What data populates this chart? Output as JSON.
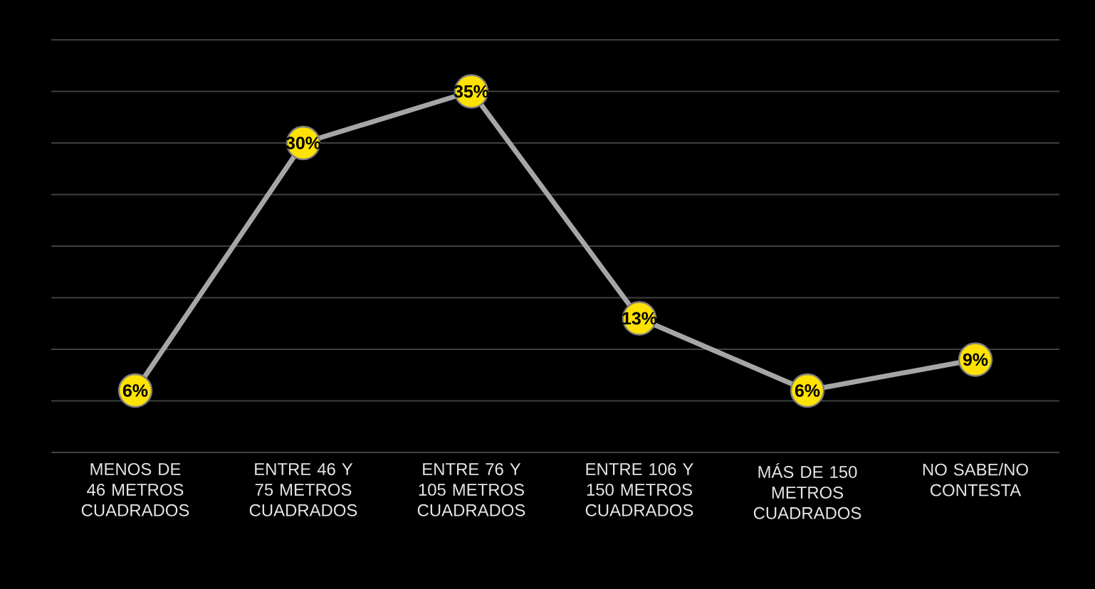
{
  "chart_data": {
    "type": "line",
    "categories": [
      "MENOS DE 46 METROS CUADRADOS",
      "ENTRE 46 Y 75 METROS CUADRADOS",
      "ENTRE 76 Y 105 METROS CUADRADOS",
      "ENTRE 106 Y 150 METROS CUADRADOS",
      "MÁS DE 150 METROS CUADRADOS",
      "NO SABE/NO CONTESTA"
    ],
    "series": [
      {
        "color": "#a6a6a6",
        "values": [
          6,
          30,
          35,
          13,
          6,
          9
        ],
        "value_labels": [
          "6%",
          "30%",
          "35%",
          "13%",
          "6%",
          "9%"
        ]
      }
    ],
    "ylim": [
      0,
      40
    ],
    "yticks": [
      {
        "value": 0,
        "label": null
      },
      {
        "value": 5,
        "label": null
      },
      {
        "value": 10,
        "label": null
      },
      {
        "value": 15,
        "label": null
      },
      {
        "value": 20,
        "label": null
      },
      {
        "value": 25,
        "label": null
      },
      {
        "value": 30,
        "label": null
      },
      {
        "value": 35,
        "label": null
      },
      {
        "value": 40,
        "label": null
      }
    ],
    "tick_labels": "x",
    "grid": "y",
    "marker": "circle",
    "line_style": "solid"
  }
}
